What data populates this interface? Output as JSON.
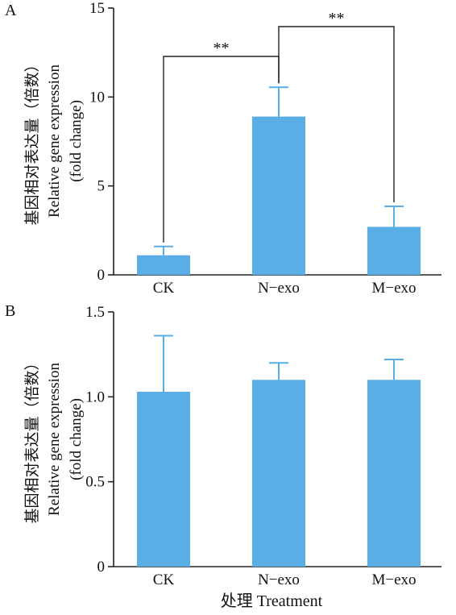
{
  "xlabel": "处理 Treatment",
  "chart_data": [
    {
      "panel": "A",
      "type": "bar",
      "categories": [
        "CK",
        "N−exo",
        "M−exo"
      ],
      "values": [
        1.1,
        8.9,
        2.7
      ],
      "errors": [
        0.5,
        1.65,
        1.15
      ],
      "ylim": [
        0,
        15
      ],
      "yticks": [
        "0",
        "5",
        "10",
        "15"
      ],
      "ylabel_lines": [
        "基因相对表达量（倍数）",
        "Relative gene expression",
        "(fold change)"
      ],
      "color": "#5aaee6",
      "significance": [
        {
          "from": 0,
          "to": 1,
          "label": "**"
        },
        {
          "from": 1,
          "to": 2,
          "label": "**"
        }
      ]
    },
    {
      "panel": "B",
      "type": "bar",
      "categories": [
        "CK",
        "N−exo",
        "M−exo"
      ],
      "values": [
        1.03,
        1.1,
        1.1
      ],
      "errors": [
        0.33,
        0.1,
        0.12
      ],
      "ylim": [
        0,
        1.5
      ],
      "yticks": [
        "0",
        "0.5",
        "1.0",
        "1.5"
      ],
      "ylabel_lines": [
        "基因相对表达量（倍数）",
        "Relative gene expression",
        "(fold change)"
      ],
      "color": "#5aaee6",
      "significance": []
    }
  ]
}
